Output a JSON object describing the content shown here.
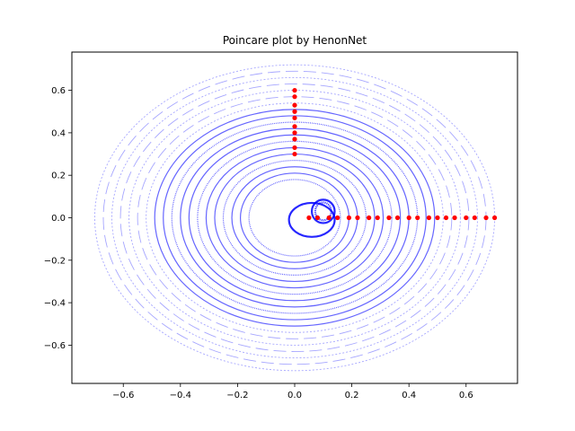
{
  "chart_data": {
    "type": "scatter",
    "title": "Poincare plot by HenonNet",
    "xlabel": "",
    "ylabel": "",
    "xlim": [
      -0.78,
      0.78
    ],
    "ylim": [
      -0.78,
      0.78
    ],
    "xticks": [
      -0.6,
      -0.4,
      -0.2,
      0.0,
      0.2,
      0.4,
      0.6
    ],
    "xtick_labels": [
      "−0.6",
      "−0.4",
      "−0.2",
      "0.0",
      "0.2",
      "0.4",
      "0.6"
    ],
    "yticks": [
      -0.6,
      -0.4,
      -0.2,
      0.0,
      0.2,
      0.4,
      0.6
    ],
    "ytick_labels": [
      "−0.6",
      "−0.4",
      "−0.2",
      "0.0",
      "0.2",
      "0.4",
      "0.6"
    ],
    "grid": false,
    "legend": "none",
    "colors": {
      "orbits": "#0000ff",
      "initial_points": "#ff0000"
    },
    "series": [
      {
        "kind": "orbit_rings",
        "color": "#0000ff",
        "rings": [
          {
            "center": [
              0.0,
              0.0
            ],
            "rx": 0.7,
            "ry": 0.72
          },
          {
            "center": [
              0.0,
              0.0
            ],
            "rx": 0.67,
            "ry": 0.69
          },
          {
            "center": [
              0.0,
              0.0
            ],
            "rx": 0.64,
            "ry": 0.66
          },
          {
            "center": [
              0.0,
              0.0
            ],
            "rx": 0.61,
            "ry": 0.63
          },
          {
            "center": [
              0.0,
              0.0
            ],
            "rx": 0.58,
            "ry": 0.6
          },
          {
            "center": [
              0.0,
              0.0
            ],
            "rx": 0.55,
            "ry": 0.57
          },
          {
            "center": [
              0.0,
              0.0
            ],
            "rx": 0.52,
            "ry": 0.54
          },
          {
            "center": [
              0.0,
              0.0
            ],
            "rx": 0.49,
            "ry": 0.51
          },
          {
            "center": [
              0.0,
              0.0
            ],
            "rx": 0.46,
            "ry": 0.48
          },
          {
            "center": [
              0.0,
              0.0
            ],
            "rx": 0.43,
            "ry": 0.45
          },
          {
            "center": [
              0.0,
              0.0
            ],
            "rx": 0.4,
            "ry": 0.42
          },
          {
            "center": [
              0.0,
              0.0
            ],
            "rx": 0.37,
            "ry": 0.39
          },
          {
            "center": [
              0.0,
              0.0
            ],
            "rx": 0.34,
            "ry": 0.36
          },
          {
            "center": [
              0.0,
              0.0
            ],
            "rx": 0.31,
            "ry": 0.33
          },
          {
            "center": [
              0.0,
              0.0
            ],
            "rx": 0.28,
            "ry": 0.3
          },
          {
            "center": [
              0.0,
              0.0
            ],
            "rx": 0.25,
            "ry": 0.27
          },
          {
            "center": [
              0.0,
              0.0
            ],
            "rx": 0.22,
            "ry": 0.24
          },
          {
            "center": [
              0.0,
              0.0
            ],
            "rx": 0.19,
            "ry": 0.21
          },
          {
            "center": [
              0.0,
              0.0
            ],
            "rx": 0.16,
            "ry": 0.18
          },
          {
            "center": [
              0.06,
              -0.01
            ],
            "rx": 0.08,
            "ry": 0.08
          },
          {
            "center": [
              0.1,
              0.03
            ],
            "rx": 0.04,
            "ry": 0.055
          },
          {
            "center": [
              0.1,
              0.03
            ],
            "rx": 0.028,
            "ry": 0.042
          }
        ]
      },
      {
        "kind": "initial_points",
        "color": "#ff0000",
        "points": [
          [
            0.0,
            0.3
          ],
          [
            0.0,
            0.33
          ],
          [
            0.0,
            0.37
          ],
          [
            0.0,
            0.4
          ],
          [
            0.0,
            0.43
          ],
          [
            0.0,
            0.47
          ],
          [
            0.0,
            0.5
          ],
          [
            0.0,
            0.53
          ],
          [
            0.0,
            0.57
          ],
          [
            0.0,
            0.6
          ],
          [
            0.05,
            0.0
          ],
          [
            0.08,
            0.0
          ],
          [
            0.12,
            0.0
          ],
          [
            0.15,
            0.0
          ],
          [
            0.19,
            0.0
          ],
          [
            0.22,
            0.0
          ],
          [
            0.26,
            0.0
          ],
          [
            0.29,
            0.0
          ],
          [
            0.33,
            0.0
          ],
          [
            0.36,
            0.0
          ],
          [
            0.4,
            0.0
          ],
          [
            0.43,
            0.0
          ],
          [
            0.47,
            0.0
          ],
          [
            0.5,
            0.0
          ],
          [
            0.53,
            0.0
          ],
          [
            0.56,
            0.0
          ],
          [
            0.6,
            0.0
          ],
          [
            0.63,
            0.0
          ],
          [
            0.67,
            0.0
          ],
          [
            0.7,
            0.0
          ]
        ]
      }
    ]
  }
}
